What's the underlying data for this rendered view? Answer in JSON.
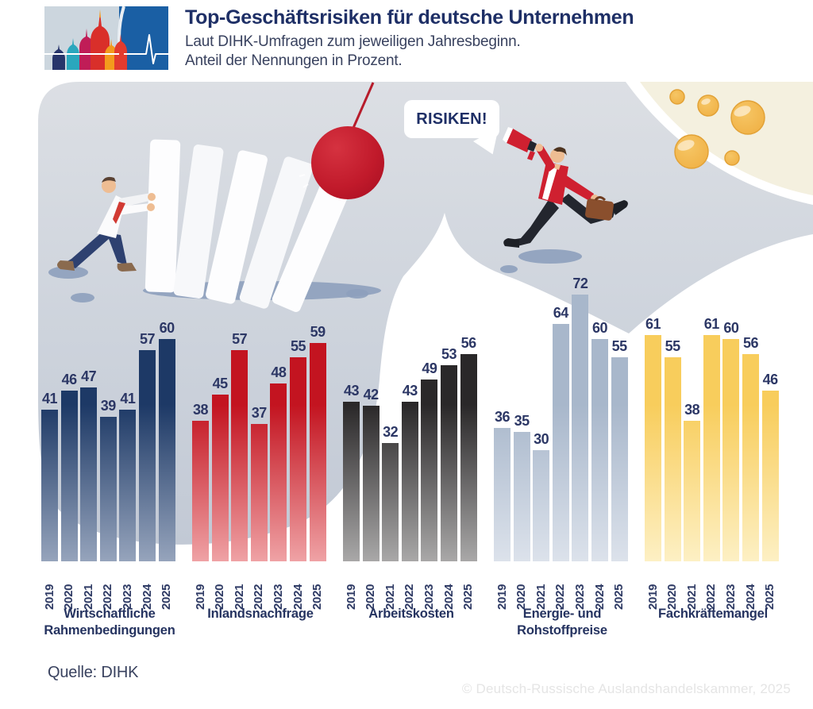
{
  "header": {
    "title": "Top-Geschäftsrisiken für deutsche Unternehmen",
    "subtitle_line1": "Laut DIHK-Umfragen zum jeweiligen Jahresbeginn.",
    "subtitle_line2": "Anteil der Nennungen in Prozent."
  },
  "illustration": {
    "speech_bubble_text": "RISIKEN!"
  },
  "chart_data": {
    "type": "bar",
    "title": "Top-Geschäftsrisiken für deutsche Unternehmen",
    "unit": "Prozent der Nennungen",
    "ylim": [
      0,
      75
    ],
    "grid": false,
    "categories": [
      "2019",
      "2020",
      "2021",
      "2022",
      "2023",
      "2024",
      "2025"
    ],
    "groups": [
      {
        "label": "Wirtschaftliche Rahmenbedingungen",
        "color_top": "#1d3966",
        "color_fade": "#96a4bc",
        "values": [
          41,
          46,
          47,
          39,
          41,
          57,
          60
        ]
      },
      {
        "label": "Inlandsnachfrage",
        "color_top": "#c31420",
        "color_fade": "#efa2a5",
        "values": [
          38,
          45,
          57,
          37,
          48,
          55,
          59
        ]
      },
      {
        "label": "Arbeitskosten",
        "color_top": "#2a2829",
        "color_fade": "#a9a8a8",
        "values": [
          43,
          42,
          32,
          43,
          49,
          53,
          56
        ]
      },
      {
        "label": "Energie- und Rohstoffpreise",
        "color_top": "#a8b7cb",
        "color_fade": "#dce2eb",
        "values": [
          36,
          35,
          30,
          64,
          72,
          60,
          55
        ]
      },
      {
        "label": "Fachkräftemangel",
        "color_top": "#f8cd5c",
        "color_fade": "#fdf0c4",
        "values": [
          61,
          55,
          38,
          61,
          60,
          56,
          46
        ]
      }
    ]
  },
  "footer": {
    "source": "Quelle: DIHK",
    "copyright": "© Deutsch-Russische Auslandshandelskammer, 2025"
  },
  "colors": {
    "accent_navy": "#1e2f66",
    "accent_red": "#c31420",
    "background_gray": "#ccd2dc",
    "background_cream": "#f4f0df",
    "bubble_gold": "#f3ba4e"
  }
}
